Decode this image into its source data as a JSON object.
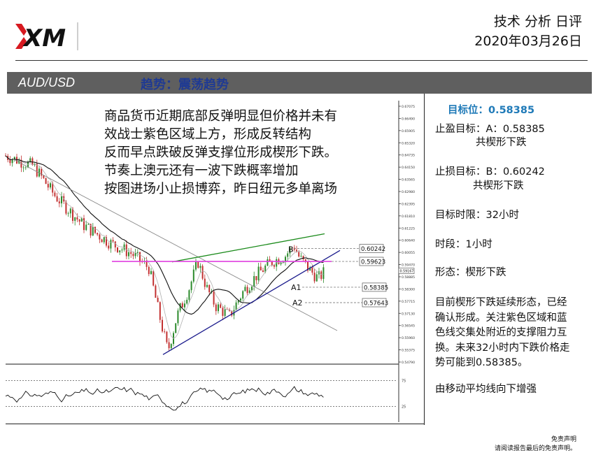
{
  "header": {
    "logo_text": "XM",
    "report_type": "技术 分析 日评",
    "date": "2020年03月26日"
  },
  "title_bar": {
    "symbol": "AUD/USD",
    "trend": "趋势：震荡趋势"
  },
  "commentary": [
    "商品货币近期底部反弹明显但价格并未有",
    "效战士紫色区域上方，形成反转结构",
    "反而早点跌破反弹支撑位形成楔形下跌。",
    "节奏上澳元还有一波下跌概率增加",
    "按图进场小止损博弈，昨日纽元多单离场"
  ],
  "chart_data": {
    "type": "line",
    "title": "",
    "price_axis_ticks": [
      "0.67075",
      "0.66490",
      "0.65905",
      "0.65320",
      "0.64735",
      "0.64150",
      "0.63565",
      "0.62980",
      "0.62395",
      "0.61810",
      "0.61225",
      "0.60640",
      "0.60055",
      "0.59470",
      "0.58885",
      "0.58300",
      "0.57715",
      "0.57130",
      "0.56545",
      "0.55960",
      "0.55375",
      "0.54790"
    ],
    "price_ylim": [
      0.5479,
      0.67075
    ],
    "current_price": "0.59167",
    "levels": [
      {
        "label": "B",
        "value": "0.60242",
        "style": "dashed"
      },
      {
        "label": "",
        "value": "0.59623",
        "style": "magenta"
      },
      {
        "label": "A1",
        "value": "0.58385",
        "style": "dashed"
      },
      {
        "label": "A2",
        "value": "0.57643",
        "style": "dashed"
      }
    ],
    "oscillator_ticks": [
      "75",
      "25"
    ],
    "oscillator_ylim": [
      0,
      100
    ],
    "colors": {
      "up": "#2c8a2c",
      "down": "#c23030",
      "ma": "#111111",
      "support": "#1a1a8c",
      "resistance": "#1a8a1a",
      "zone": "#e040e0",
      "mid": "#888888"
    }
  },
  "sidebar": {
    "target": "目标位：0.58385",
    "take_profit_label": "止盈目标：A：0.58385",
    "take_profit_note": "共楔形下跌",
    "stop_loss_label": "止损目标：B：0.60242",
    "stop_loss_note": "共楔形下跌",
    "time_limit": "目标时限：32小时",
    "timeframe": "时段：1小时",
    "pattern": "形态：楔形下跌",
    "analysis": [
      "目前楔形下跌延续形态，已经",
      "确认形成。关注紫色区域和蓝",
      "色线交集处附近的支撑阻力互",
      "换。未来32小时内下跌价格走",
      "势可能到0.58385。"
    ],
    "ma_note": "由移动平均线向下增强"
  },
  "footer": {
    "disclaimer_title": "免责声明",
    "disclaimer_text": "请阅读报告最后的免责声明。"
  }
}
